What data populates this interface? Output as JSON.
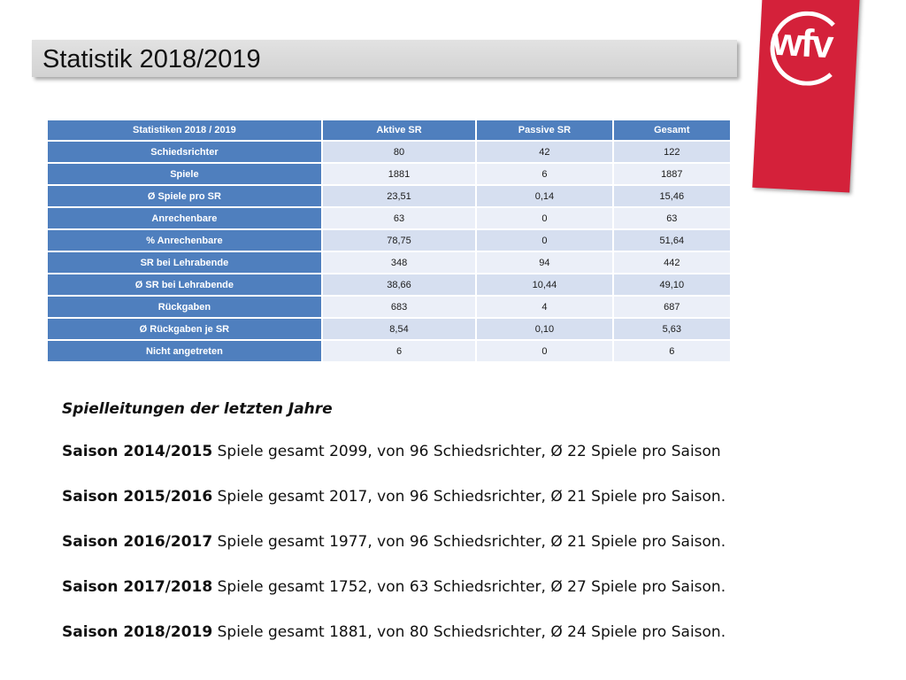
{
  "title": "Statistik 2018/2019",
  "logo_text": "wfv",
  "table": {
    "headers": [
      "Statistiken 2018 / 2019",
      "Aktive SR",
      "Passive SR",
      "Gesamt"
    ],
    "rows": [
      {
        "label": "Schiedsrichter",
        "aktive": "80",
        "passive": "42",
        "gesamt": "122"
      },
      {
        "label": "Spiele",
        "aktive": "1881",
        "passive": "6",
        "gesamt": "1887"
      },
      {
        "label": "Ø Spiele pro SR",
        "aktive": "23,51",
        "passive": "0,14",
        "gesamt": "15,46"
      },
      {
        "label": "Anrechenbare",
        "aktive": "63",
        "passive": "0",
        "gesamt": "63"
      },
      {
        "label": "% Anrechenbare",
        "aktive": "78,75",
        "passive": "0",
        "gesamt": "51,64"
      },
      {
        "label": "SR bei Lehrabende",
        "aktive": "348",
        "passive": "94",
        "gesamt": "442"
      },
      {
        "label": "Ø SR bei Lehrabende",
        "aktive": "38,66",
        "passive": "10,44",
        "gesamt": "49,10"
      },
      {
        "label": "Rückgaben",
        "aktive": "683",
        "passive": "4",
        "gesamt": "687"
      },
      {
        "label": "Ø Rückgaben je SR",
        "aktive": "8,54",
        "passive": "0,10",
        "gesamt": "5,63"
      },
      {
        "label": "Nicht angetreten",
        "aktive": "6",
        "passive": "0",
        "gesamt": "6"
      }
    ]
  },
  "section_heading": "Spielleitungen der letzten Jahre",
  "seasons": [
    {
      "season": "Saison 2014/2015",
      "text": " Spiele gesamt 2099, von 96 Schiedsrichter, Ø 22 Spiele pro Saison"
    },
    {
      "season": "Saison 2015/2016",
      "text": " Spiele gesamt 2017, von 96 Schiedsrichter, Ø 21 Spiele pro Saison."
    },
    {
      "season": "Saison 2016/2017",
      "text": " Spiele gesamt 1977, von 96 Schiedsrichter, Ø 21 Spiele pro Saison."
    },
    {
      "season": "Saison 2017/2018",
      "text": " Spiele gesamt 1752, von 63 Schiedsrichter, Ø 27 Spiele pro Saison."
    },
    {
      "season": "Saison 2018/2019",
      "text": " Spiele gesamt 1881, von 80 Schiedsrichter, Ø 24 Spiele pro Saison."
    }
  ],
  "colors": {
    "table_header": "#4f7fbe",
    "row_odd": "#d6dff0",
    "row_even": "#ebeff8",
    "logo_red": "#d4213a"
  }
}
